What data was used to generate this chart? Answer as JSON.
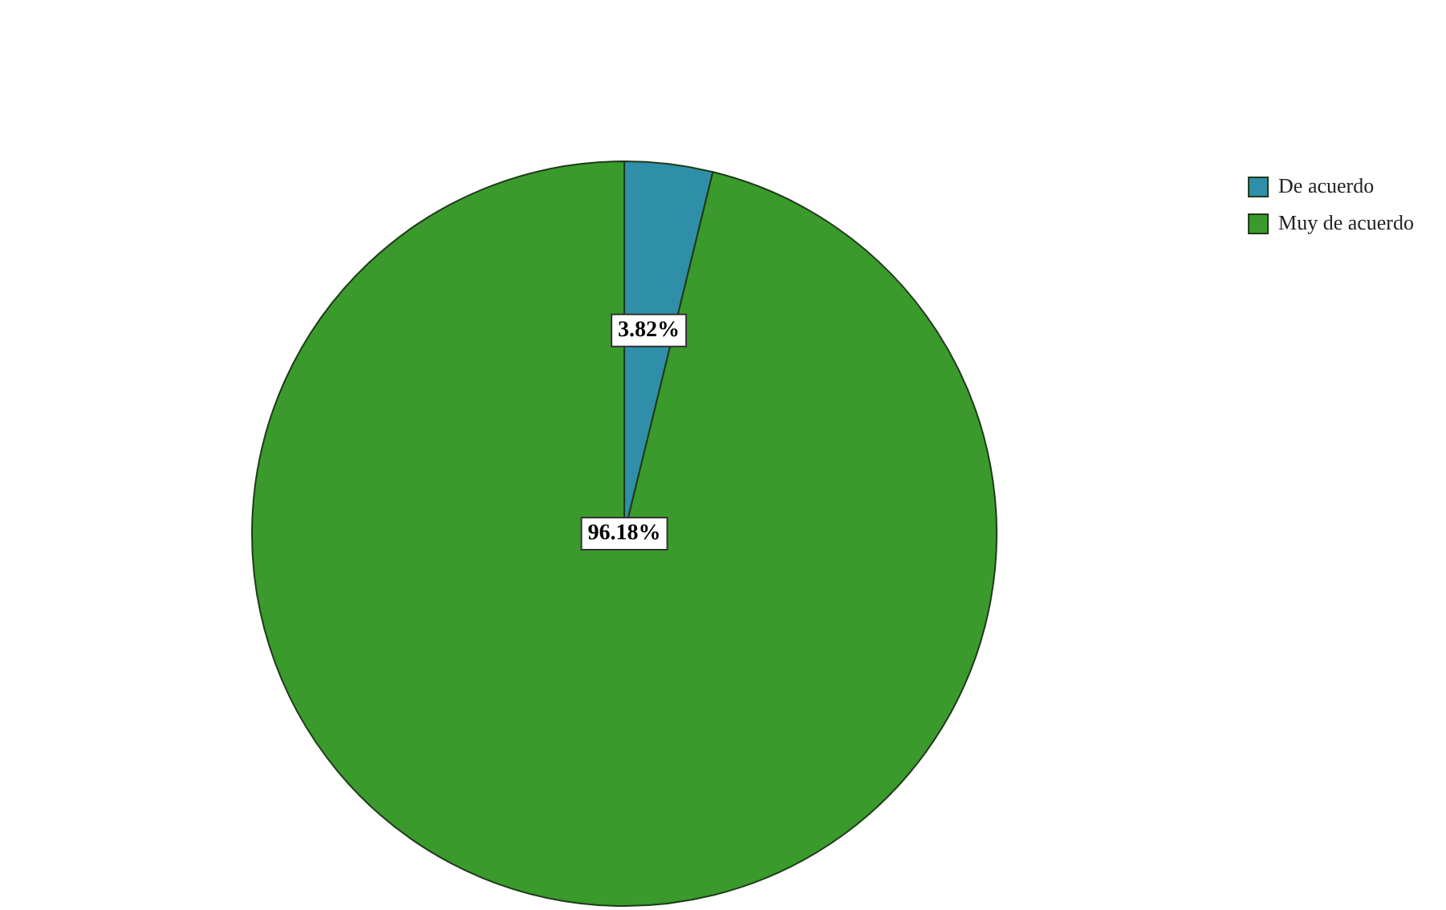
{
  "chart_data": {
    "type": "pie",
    "categories": [
      "De acuerdo",
      "Muy de acuerdo"
    ],
    "values": [
      3.82,
      96.18
    ],
    "colors": [
      "#2f8fa8",
      "#3a9a2c"
    ],
    "value_labels": [
      "3.82%",
      "96.18%"
    ],
    "legend": "top right"
  }
}
